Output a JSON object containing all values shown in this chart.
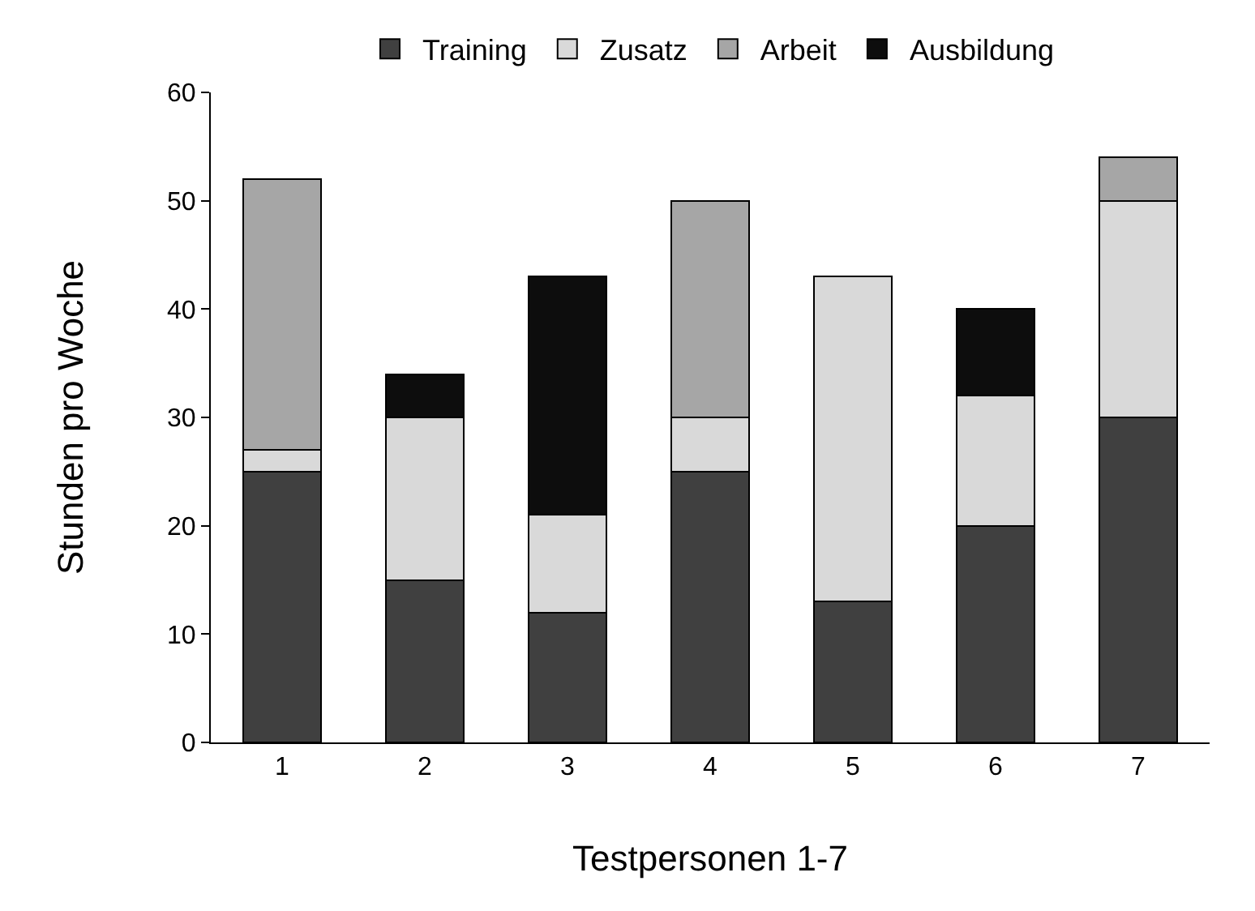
{
  "chart_data": {
    "type": "bar",
    "stacked": true,
    "xlabel": "Testpersonen 1-7",
    "ylabel": "Stunden pro Woche",
    "categories": [
      "1",
      "2",
      "3",
      "4",
      "5",
      "6",
      "7"
    ],
    "series": [
      {
        "name": "Training",
        "color": "#404040",
        "values": [
          25,
          15,
          12,
          25,
          13,
          20,
          30
        ]
      },
      {
        "name": "Zusatz",
        "color": "#d9d9d9",
        "values": [
          2,
          15,
          9,
          5,
          30,
          12,
          20
        ]
      },
      {
        "name": "Arbeit",
        "color": "#a6a6a6",
        "values": [
          25,
          null,
          null,
          20,
          null,
          null,
          4
        ]
      },
      {
        "name": "Ausbildung",
        "color": "#0d0d0d",
        "values": [
          null,
          4,
          22,
          null,
          null,
          8,
          null
        ]
      }
    ],
    "ylim": [
      0,
      60
    ],
    "yticks": [
      0,
      10,
      20,
      30,
      40,
      50,
      60
    ],
    "grid": false,
    "legend": "top"
  }
}
